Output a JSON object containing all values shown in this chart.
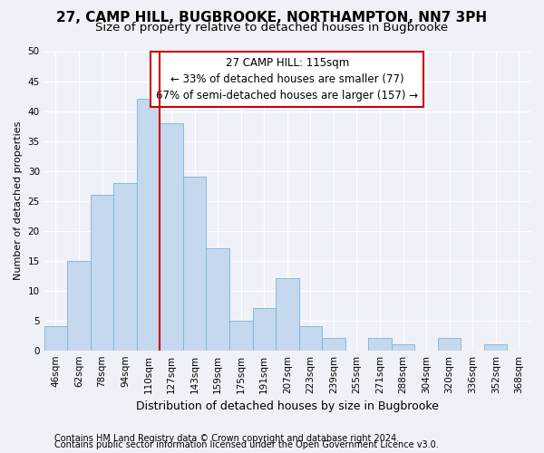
{
  "title_line1": "27, CAMP HILL, BUGBROOKE, NORTHAMPTON, NN7 3PH",
  "title_line2": "Size of property relative to detached houses in Bugbrooke",
  "xlabel": "Distribution of detached houses by size in Bugbrooke",
  "ylabel": "Number of detached properties",
  "categories": [
    "46sqm",
    "62sqm",
    "78sqm",
    "94sqm",
    "110sqm",
    "127sqm",
    "143sqm",
    "159sqm",
    "175sqm",
    "191sqm",
    "207sqm",
    "223sqm",
    "239sqm",
    "255sqm",
    "271sqm",
    "288sqm",
    "304sqm",
    "320sqm",
    "336sqm",
    "352sqm",
    "368sqm"
  ],
  "values": [
    4,
    15,
    26,
    28,
    42,
    38,
    29,
    17,
    5,
    7,
    12,
    4,
    2,
    0,
    2,
    1,
    0,
    2,
    0,
    1,
    0
  ],
  "bar_color": "#c5d8ed",
  "bar_edge_color": "#7ab4d8",
  "red_line_index": 4.5,
  "annotation_text": "27 CAMP HILL: 115sqm\n← 33% of detached houses are smaller (77)\n67% of semi-detached houses are larger (157) →",
  "annotation_box_color": "#ffffff",
  "annotation_box_edge": "#cc0000",
  "ylim": [
    0,
    50
  ],
  "yticks": [
    0,
    5,
    10,
    15,
    20,
    25,
    30,
    35,
    40,
    45,
    50
  ],
  "footnote_line1": "Contains HM Land Registry data © Crown copyright and database right 2024.",
  "footnote_line2": "Contains public sector information licensed under the Open Government Licence v3.0.",
  "bg_color": "#eef2f8",
  "grid_color": "#ffffff",
  "title_fontsize": 11,
  "subtitle_fontsize": 9.5,
  "ylabel_fontsize": 8,
  "xlabel_fontsize": 9,
  "tick_fontsize": 7.5,
  "annotation_fontsize": 8.5,
  "footnote_fontsize": 7
}
